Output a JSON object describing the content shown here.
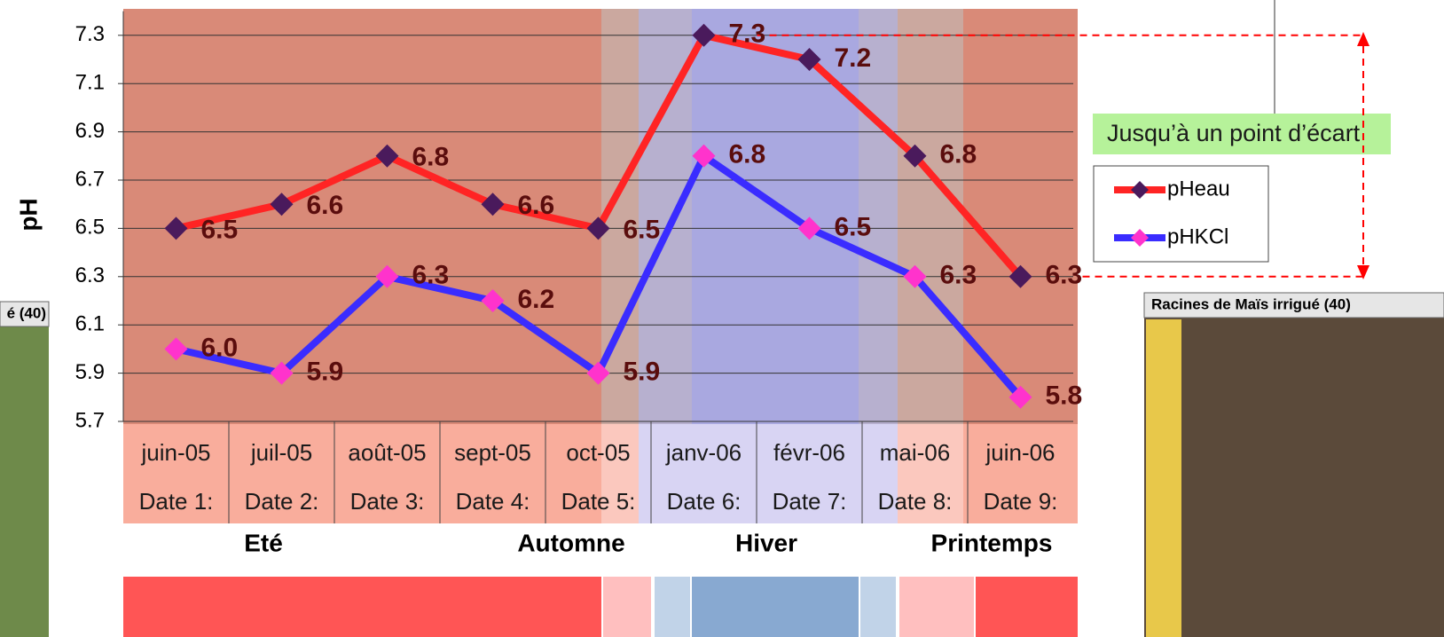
{
  "chart_data": {
    "type": "line",
    "y_label": "pH",
    "categories": [
      "juin-05",
      "juil-05",
      "août-05",
      "sept-05",
      "oct-05",
      "janv-06",
      "févr-06",
      "mai-06",
      "juin-06"
    ],
    "date_labels": [
      "Date 1:",
      "Date 2:",
      "Date 3:",
      "Date 4:",
      "Date 5:",
      "Date 6:",
      "Date 7:",
      "Date 8:",
      "Date 9:"
    ],
    "series": [
      {
        "name": "pHeau",
        "color": "#ff2424",
        "marker_color": "#4a1a5c",
        "values": [
          6.5,
          6.6,
          6.8,
          6.6,
          6.5,
          7.3,
          7.2,
          6.8,
          6.3
        ],
        "value_labels": [
          "6.5",
          "6.6",
          "6.8",
          "6.6",
          "6.5",
          "7.3",
          "7.2",
          "6.8",
          "6.3"
        ]
      },
      {
        "name": "pHKCl",
        "color": "#3a2cff",
        "marker_color": "#ff33cc",
        "values": [
          6.0,
          5.9,
          6.3,
          6.2,
          5.9,
          6.8,
          6.5,
          6.3,
          5.8
        ],
        "value_labels": [
          "6.0",
          "5.9",
          "6.3",
          "6.2",
          "5.9",
          "6.8",
          "6.5",
          "6.3",
          "5.8"
        ]
      }
    ],
    "ylim": [
      5.7,
      7.4
    ],
    "yticks": [
      5.7,
      5.9,
      6.1,
      6.3,
      6.5,
      6.7,
      6.9,
      7.1,
      7.3
    ],
    "grid": true,
    "seasons": [
      "Eté",
      "Automne",
      "Hiver",
      "Printemps"
    ],
    "annotation": "Jusqu’à un point d’écart"
  },
  "photos": {
    "left_caption": "é (40)",
    "right_caption": "Racines de Maïs irrigué (40)"
  }
}
